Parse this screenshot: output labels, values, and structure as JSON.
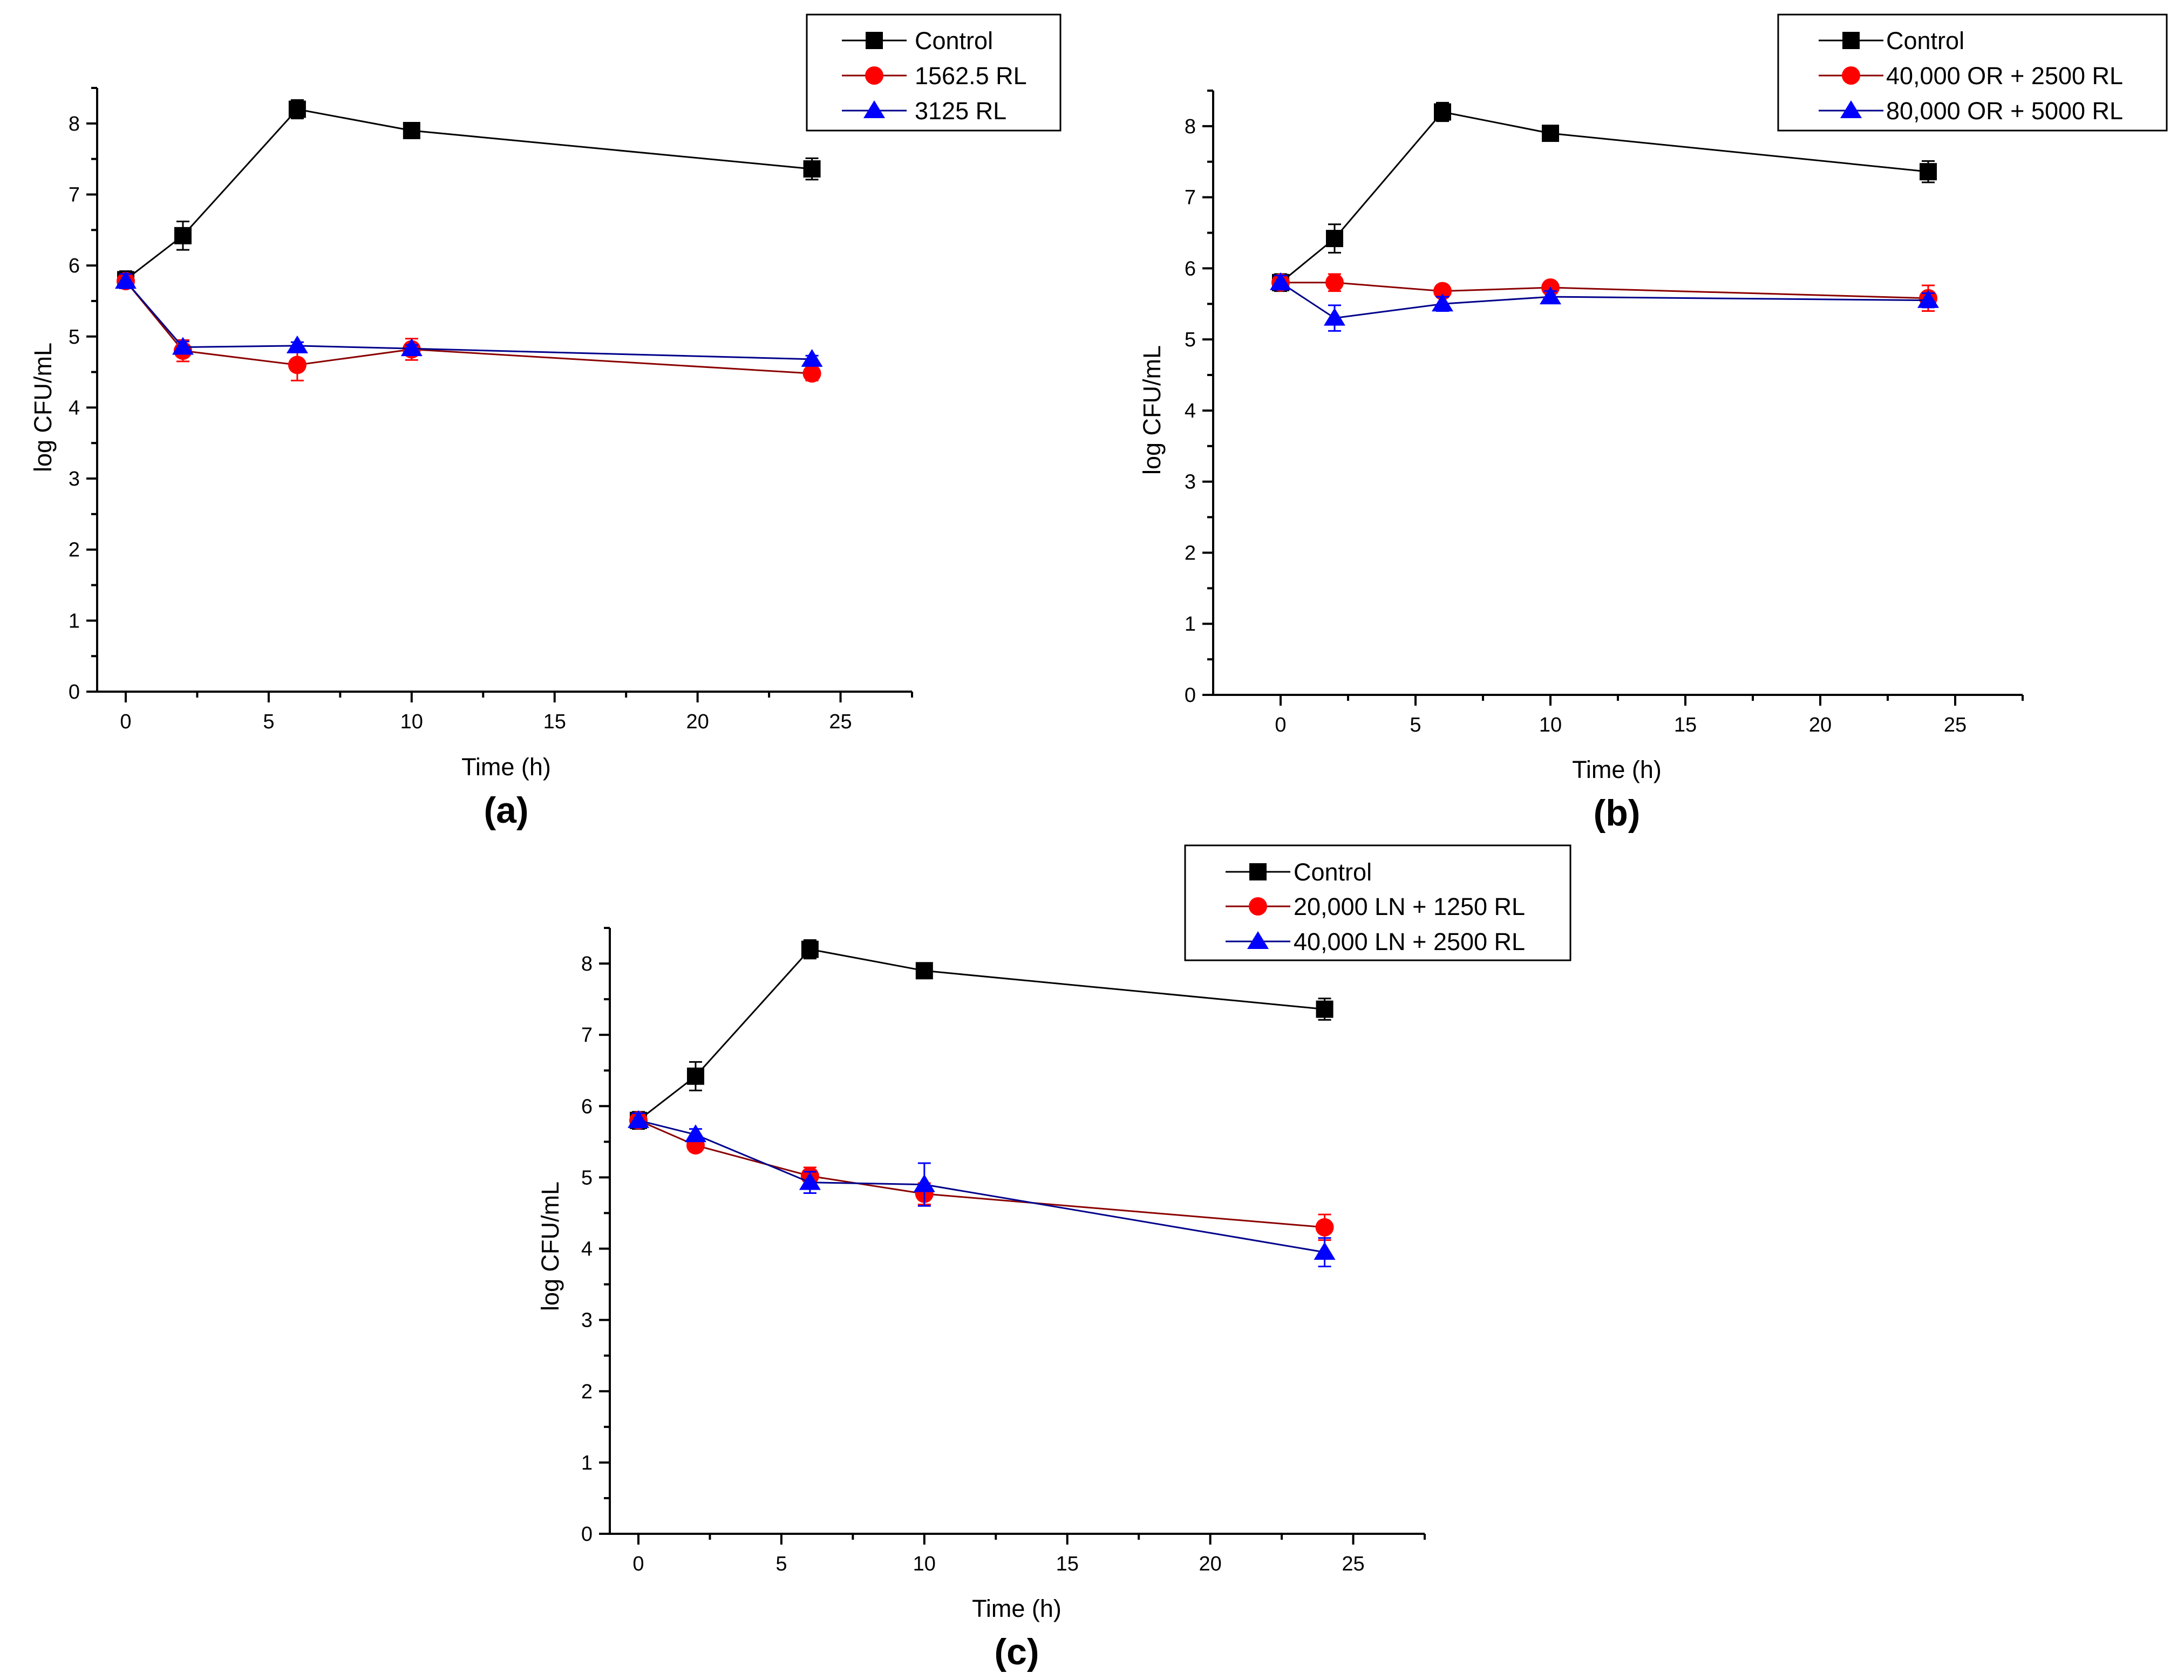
{
  "chart_data": [
    {
      "type": "line",
      "panel_label": "(a)",
      "xlabel": "Time (h)",
      "ylabel": "log CFU/mL",
      "xlim": [
        -1,
        27.5
      ],
      "ylim": [
        0,
        8.5
      ],
      "xticks": [
        0,
        5,
        10,
        15,
        20,
        25
      ],
      "yticks": [
        0,
        1,
        2,
        3,
        4,
        5,
        6,
        7,
        8
      ],
      "legend_position": "top-right",
      "x": [
        0,
        2,
        6,
        10,
        24
      ],
      "series": [
        {
          "name": "Control",
          "color": "#000000",
          "line_color": "#000000",
          "marker": "square",
          "values": [
            5.8,
            6.42,
            8.2,
            7.9,
            7.36
          ],
          "errors": [
            0.12,
            0.2,
            0.13,
            0.08,
            0.15
          ]
        },
        {
          "name": "1562.5 RL",
          "color": "#ff0000",
          "line_color": "#8b0000",
          "marker": "circle",
          "values": [
            5.78,
            4.8,
            4.6,
            4.82,
            4.48
          ],
          "errors": [
            0.1,
            0.15,
            0.22,
            0.15,
            0.1
          ]
        },
        {
          "name": "3125 RL",
          "color": "#0000ff",
          "line_color": "#00008b",
          "marker": "triangle",
          "values": [
            5.78,
            4.85,
            4.87,
            4.83,
            4.68
          ],
          "errors": [
            0.1,
            0.08,
            0.05,
            0.05,
            0.05
          ]
        }
      ]
    },
    {
      "type": "line",
      "panel_label": "(b)",
      "xlabel": "Time (h)",
      "ylabel": "log CFU/mL",
      "xlim": [
        -2.5,
        27.5
      ],
      "ylim": [
        0,
        8.5
      ],
      "xticks": [
        0,
        5,
        10,
        15,
        20,
        25
      ],
      "yticks": [
        0,
        1,
        2,
        3,
        4,
        5,
        6,
        7,
        8
      ],
      "legend_position": "top-right",
      "x": [
        0,
        2,
        6,
        10,
        24
      ],
      "series": [
        {
          "name": "Control",
          "color": "#000000",
          "line_color": "#000000",
          "marker": "square",
          "values": [
            5.8,
            6.42,
            8.2,
            7.9,
            7.36
          ],
          "errors": [
            0.12,
            0.2,
            0.13,
            0.08,
            0.15
          ]
        },
        {
          "name": "40,000 OR + 2500 RL",
          "color": "#ff0000",
          "line_color": "#8b0000",
          "marker": "circle",
          "values": [
            5.8,
            5.8,
            5.68,
            5.73,
            5.58
          ],
          "errors": [
            0.1,
            0.12,
            0.08,
            0.05,
            0.18
          ]
        },
        {
          "name": "80,000 OR + 5000 RL",
          "color": "#0000ff",
          "line_color": "#00008b",
          "marker": "triangle",
          "values": [
            5.8,
            5.3,
            5.5,
            5.6,
            5.55
          ],
          "errors": [
            0.1,
            0.18,
            0.1,
            0.08,
            0.1
          ]
        }
      ]
    },
    {
      "type": "line",
      "panel_label": "(c)",
      "xlabel": "Time (h)",
      "ylabel": "log CFU/mL",
      "xlim": [
        -1,
        27.5
      ],
      "ylim": [
        0,
        8.5
      ],
      "xticks": [
        0,
        5,
        10,
        15,
        20,
        25
      ],
      "yticks": [
        0,
        1,
        2,
        3,
        4,
        5,
        6,
        7,
        8
      ],
      "legend_position": "top-right",
      "x": [
        0,
        2,
        6,
        10,
        24
      ],
      "series": [
        {
          "name": "Control",
          "color": "#000000",
          "line_color": "#000000",
          "marker": "square",
          "values": [
            5.8,
            6.42,
            8.2,
            7.9,
            7.36
          ],
          "errors": [
            0.12,
            0.2,
            0.13,
            0.08,
            0.15
          ]
        },
        {
          "name": "20,000 LN + 1250 RL",
          "color": "#ff0000",
          "line_color": "#8b0000",
          "marker": "circle",
          "values": [
            5.8,
            5.45,
            5.02,
            4.77,
            4.3
          ],
          "errors": [
            0.1,
            0.05,
            0.12,
            0.15,
            0.18
          ]
        },
        {
          "name": "40,000 LN + 2500 RL",
          "color": "#0000ff",
          "line_color": "#00008b",
          "marker": "triangle",
          "values": [
            5.8,
            5.6,
            4.93,
            4.9,
            3.95
          ],
          "errors": [
            0.1,
            0.08,
            0.15,
            0.3,
            0.2
          ]
        }
      ]
    }
  ]
}
